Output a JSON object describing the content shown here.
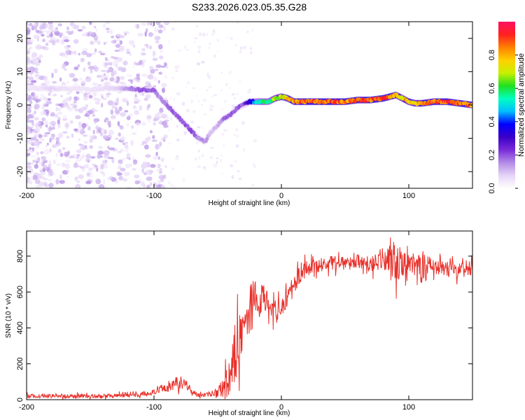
{
  "figure_title": "S233.2026.023.05.35.G28",
  "chart_data": [
    {
      "type": "heatmap",
      "title": "S233.2026.023.05.35.G28",
      "xlabel": "Height of straight line (km)",
      "ylabel": "Frequency (Hz)",
      "xlim": [
        -200,
        150
      ],
      "ylim": [
        -25,
        25
      ],
      "xticks": [
        -200,
        -100,
        0,
        100
      ],
      "yticks": [
        -20,
        -10,
        0,
        10,
        20
      ],
      "colorbar": {
        "label": "Normalized spectral amplitude",
        "range": [
          0,
          1
        ],
        "ticks": [
          0.0,
          0.2,
          0.4,
          0.6,
          0.8
        ],
        "tick_labels": [
          "0.0",
          "0.2",
          "0.4",
          "0.6",
          "0.8"
        ],
        "colormap": [
          "#ffffff",
          "#e6d4f7",
          "#b28be6",
          "#7a2bd9",
          "#3a00c8",
          "#0000ff",
          "#00bfff",
          "#00ffc0",
          "#20e020",
          "#c8f000",
          "#ffd000",
          "#ff8000",
          "#ff2020",
          "#ff1060"
        ]
      },
      "ridge": {
        "x": [
          -200,
          -190,
          -180,
          -170,
          -160,
          -150,
          -140,
          -130,
          -120,
          -110,
          -100,
          -95,
          -90,
          -85,
          -80,
          -75,
          -70,
          -65,
          -60,
          -55,
          -50,
          -45,
          -40,
          -35,
          -30,
          -25,
          -20,
          -15,
          -10,
          -5,
          0,
          5,
          10,
          15,
          20,
          30,
          40,
          50,
          60,
          70,
          80,
          85,
          90,
          95,
          100,
          105,
          110,
          120,
          130,
          140,
          150
        ],
        "y": [
          5,
          5,
          5,
          5,
          5,
          4.5,
          5,
          5,
          5,
          4.5,
          4.5,
          2,
          0,
          -2,
          -4,
          -6,
          -8,
          -10,
          -11,
          -8,
          -6,
          -4,
          -3,
          -1,
          0,
          1,
          1,
          1,
          1,
          2,
          2.5,
          2,
          1,
          1,
          1,
          1,
          1,
          1,
          1.5,
          1.5,
          2,
          2.5,
          3,
          2,
          1,
          0.5,
          0.5,
          1,
          1,
          0.5,
          0
        ],
        "amplitude": [
          0.05,
          0.05,
          0.08,
          0.06,
          0.05,
          0.05,
          0.06,
          0.08,
          0.15,
          0.2,
          0.2,
          0.15,
          0.18,
          0.2,
          0.2,
          0.2,
          0.22,
          0.15,
          0.15,
          0.1,
          0.12,
          0.18,
          0.2,
          0.2,
          0.2,
          0.35,
          0.5,
          0.6,
          0.55,
          0.7,
          0.75,
          0.8,
          0.85,
          0.9,
          0.9,
          0.92,
          0.92,
          0.9,
          0.9,
          0.92,
          0.92,
          0.9,
          0.85,
          0.8,
          0.85,
          0.8,
          0.9,
          0.92,
          0.92,
          0.9,
          0.9
        ]
      }
    },
    {
      "type": "line",
      "xlabel": "Height of straight line (km)",
      "ylabel": "SNR (10 * v/v)",
      "xlim": [
        -200,
        150
      ],
      "ylim": [
        0,
        940
      ],
      "xticks": [
        -200,
        -100,
        0,
        100
      ],
      "yticks": [
        0,
        200,
        400,
        600,
        800
      ],
      "color": "#e8302a",
      "x": [
        -200,
        -180,
        -160,
        -140,
        -120,
        -110,
        -100,
        -95,
        -90,
        -85,
        -80,
        -75,
        -70,
        -65,
        -60,
        -55,
        -50,
        -45,
        -40,
        -35,
        -30,
        -25,
        -20,
        -15,
        -10,
        -5,
        0,
        5,
        10,
        15,
        20,
        25,
        30,
        40,
        50,
        60,
        70,
        80,
        90,
        95,
        100,
        105,
        110,
        120,
        130,
        140,
        150
      ],
      "y": [
        20,
        20,
        20,
        20,
        25,
        30,
        40,
        55,
        70,
        80,
        100,
        90,
        40,
        25,
        25,
        30,
        40,
        60,
        150,
        300,
        420,
        500,
        550,
        580,
        520,
        500,
        520,
        570,
        640,
        700,
        730,
        740,
        750,
        760,
        760,
        770,
        760,
        770,
        780,
        760,
        760,
        740,
        740,
        740,
        730,
        720,
        730
      ],
      "noise_amplitude": [
        15,
        15,
        15,
        15,
        15,
        20,
        20,
        30,
        40,
        40,
        50,
        40,
        20,
        15,
        15,
        20,
        40,
        80,
        150,
        200,
        220,
        200,
        150,
        120,
        100,
        80,
        80,
        70,
        70,
        60,
        60,
        50,
        50,
        50,
        50,
        50,
        60,
        60,
        150,
        100,
        60,
        60,
        120,
        50,
        50,
        50,
        50
      ]
    }
  ]
}
